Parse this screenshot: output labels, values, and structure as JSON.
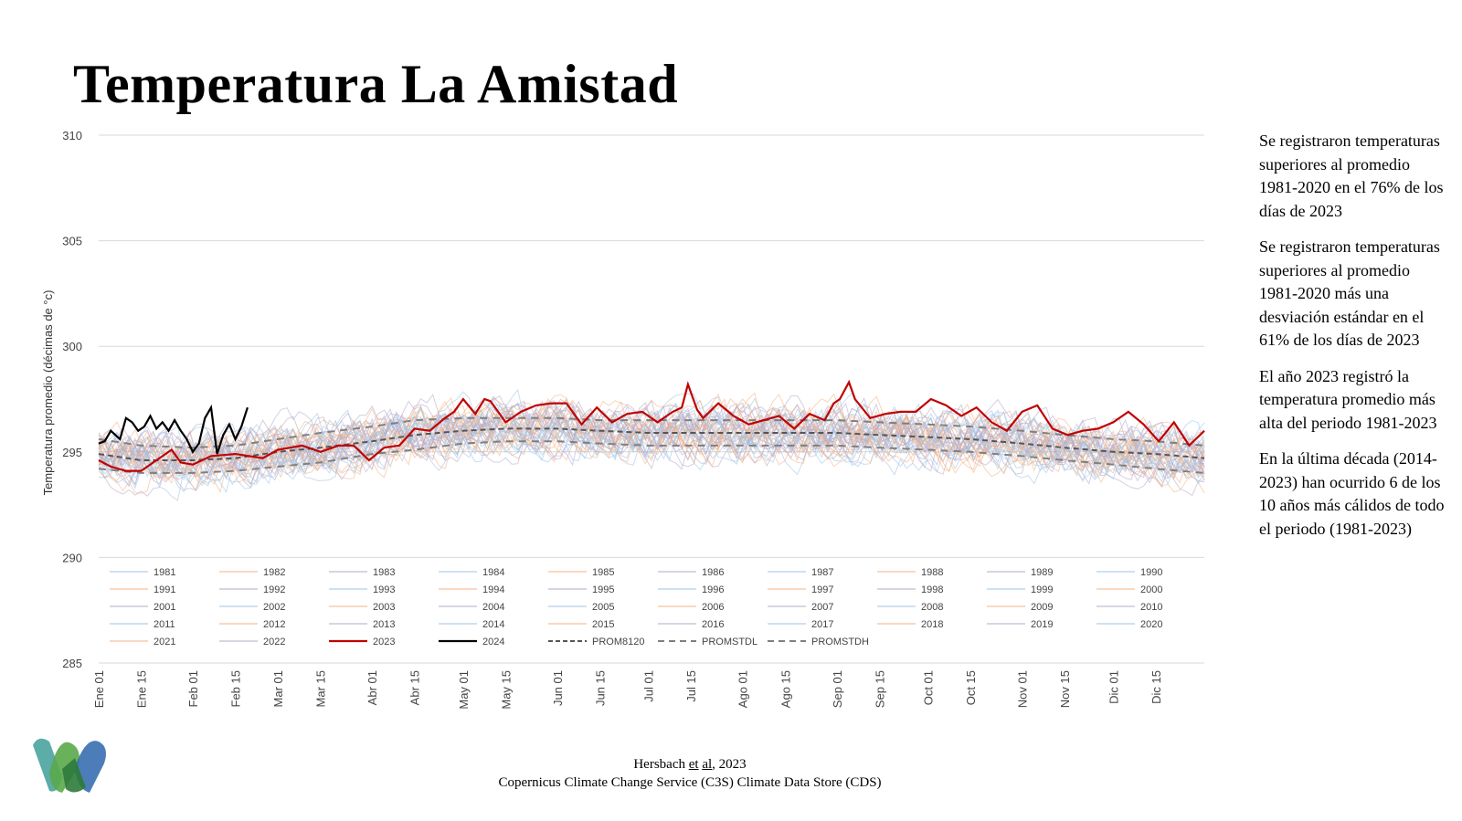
{
  "title": "Temperatura La Amistad",
  "notes": [
    "Se registraron temperaturas superiores al promedio 1981-2020 en el 76% de los días de 2023",
    "Se registraron temperaturas superiores al promedio 1981-2020 más una desviación estándar en el 61% de los días de 2023",
    "El año 2023 registró la temperatura promedio más alta del periodo 1981-2023",
    "En la última década (2014-2023) han ocurrido 6 de los 10 años más cálidos de todo el periodo (1981-2023)"
  ],
  "source": {
    "author": "Hersbach",
    "etal_1": "et",
    "etal_2": "al",
    "year": ", 2023",
    "line2": "Copernicus Climate Change Service (C3S) Climate Data Store (CDS)"
  },
  "logo_icon": "w-logo-icon",
  "chart_data": {
    "type": "line",
    "ylabel": "Temperatura promedio (décimas de °c)",
    "xlabel": "",
    "ylim": [
      285,
      310
    ],
    "yticks": [
      285,
      290,
      295,
      300,
      305,
      310
    ],
    "xlim": [
      1,
      365
    ],
    "x_ticks": [
      {
        "day": 1,
        "label": "Ene 01"
      },
      {
        "day": 15,
        "label": "Ene 15"
      },
      {
        "day": 32,
        "label": "Feb 01"
      },
      {
        "day": 46,
        "label": "Feb 15"
      },
      {
        "day": 60,
        "label": "Mar 01"
      },
      {
        "day": 74,
        "label": "Mar 15"
      },
      {
        "day": 91,
        "label": "Abr 01"
      },
      {
        "day": 105,
        "label": "Abr 15"
      },
      {
        "day": 121,
        "label": "May 01"
      },
      {
        "day": 135,
        "label": "May 15"
      },
      {
        "day": 152,
        "label": "Jun 01"
      },
      {
        "day": 166,
        "label": "Jun 15"
      },
      {
        "day": 182,
        "label": "Jul 01"
      },
      {
        "day": 196,
        "label": "Jul 15"
      },
      {
        "day": 213,
        "label": "Ago 01"
      },
      {
        "day": 227,
        "label": "Ago 15"
      },
      {
        "day": 244,
        "label": "Sep 01"
      },
      {
        "day": 258,
        "label": "Sep 15"
      },
      {
        "day": 274,
        "label": "Oct 01"
      },
      {
        "day": 288,
        "label": "Oct 15"
      },
      {
        "day": 305,
        "label": "Nov 01"
      },
      {
        "day": 319,
        "label": "Nov 15"
      },
      {
        "day": 335,
        "label": "Dic 01"
      },
      {
        "day": 349,
        "label": "Dic 15"
      }
    ],
    "grid": true,
    "legend_placement": "bottom-inside",
    "colors": {
      "y2023": "#c00000",
      "y2024": "#000000",
      "prom": "#555555",
      "std": "#7f7f7f",
      "years_cool": "#9dc3e6",
      "years_warm": "#f4b183",
      "years_mid": "#b4a7c8"
    },
    "legend": [
      "1981",
      "1982",
      "1983",
      "1984",
      "1985",
      "1986",
      "1987",
      "1988",
      "1989",
      "1990",
      "1991",
      "1992",
      "1993",
      "1994",
      "1995",
      "1996",
      "1997",
      "1998",
      "1999",
      "2000",
      "2001",
      "2002",
      "2003",
      "2004",
      "2005",
      "2006",
      "2007",
      "2008",
      "2009",
      "2010",
      "2011",
      "2012",
      "2013",
      "2014",
      "2015",
      "2016",
      "2017",
      "2018",
      "2019",
      "2020",
      "2021",
      "2022",
      "2023",
      "2024",
      "PROM8120",
      "PROMSTDL",
      "PROMSTDH"
    ],
    "series": [
      {
        "name": "PROM8120",
        "style": "dash-dark",
        "x": [
          1,
          15,
          32,
          46,
          60,
          74,
          91,
          105,
          121,
          135,
          152,
          166,
          182,
          196,
          213,
          227,
          244,
          258,
          274,
          288,
          305,
          319,
          335,
          349,
          365
        ],
        "y": [
          294.9,
          294.6,
          294.6,
          294.7,
          295.0,
          295.2,
          295.5,
          295.8,
          296.0,
          296.1,
          296.1,
          296.0,
          295.9,
          295.9,
          295.9,
          295.9,
          295.9,
          295.8,
          295.7,
          295.6,
          295.4,
          295.2,
          295.0,
          294.9,
          294.7
        ]
      },
      {
        "name": "PROMSTDL",
        "style": "dash-light",
        "x": [
          1,
          15,
          32,
          46,
          60,
          74,
          91,
          105,
          121,
          135,
          152,
          166,
          182,
          196,
          213,
          227,
          244,
          258,
          274,
          288,
          305,
          319,
          335,
          349,
          365
        ],
        "y": [
          294.2,
          294.0,
          294.0,
          294.1,
          294.3,
          294.5,
          294.9,
          295.1,
          295.4,
          295.5,
          295.5,
          295.4,
          295.3,
          295.3,
          295.3,
          295.3,
          295.3,
          295.2,
          295.1,
          295.0,
          294.8,
          294.6,
          294.4,
          294.2,
          294.0
        ]
      },
      {
        "name": "PROMSTDH",
        "style": "dash-light",
        "x": [
          1,
          15,
          32,
          46,
          60,
          74,
          91,
          105,
          121,
          135,
          152,
          166,
          182,
          196,
          213,
          227,
          244,
          258,
          274,
          288,
          305,
          319,
          335,
          349,
          365
        ],
        "y": [
          295.6,
          295.3,
          295.2,
          295.3,
          295.6,
          295.9,
          296.2,
          296.5,
          296.6,
          296.6,
          296.6,
          296.5,
          296.5,
          296.5,
          296.5,
          296.5,
          296.5,
          296.4,
          296.3,
          296.2,
          296.0,
          295.8,
          295.6,
          295.5,
          295.3
        ]
      },
      {
        "name": "2023",
        "style": "red",
        "x": [
          1,
          5,
          10,
          15,
          20,
          25,
          28,
          32,
          38,
          46,
          55,
          60,
          68,
          74,
          80,
          85,
          90,
          95,
          100,
          105,
          110,
          115,
          118,
          121,
          125,
          128,
          130,
          135,
          140,
          145,
          150,
          155,
          160,
          165,
          170,
          175,
          180,
          185,
          190,
          193,
          195,
          198,
          200,
          205,
          210,
          215,
          220,
          225,
          230,
          235,
          240,
          243,
          245,
          248,
          250,
          255,
          260,
          265,
          270,
          275,
          280,
          285,
          290,
          295,
          300,
          305,
          310,
          315,
          320,
          325,
          330,
          335,
          340,
          345,
          350,
          355,
          360,
          365
        ],
        "y": [
          294.6,
          294.3,
          294.1,
          294.1,
          294.6,
          295.1,
          294.5,
          294.4,
          294.8,
          294.9,
          294.7,
          295.1,
          295.3,
          295.0,
          295.3,
          295.3,
          294.6,
          295.2,
          295.3,
          296.1,
          296.0,
          296.6,
          296.9,
          297.5,
          296.8,
          297.5,
          297.4,
          296.4,
          296.9,
          297.2,
          297.3,
          297.3,
          296.3,
          297.1,
          296.4,
          296.8,
          296.9,
          296.4,
          296.9,
          297.1,
          298.2,
          297.0,
          296.6,
          297.3,
          296.7,
          296.3,
          296.5,
          296.7,
          296.1,
          296.8,
          296.5,
          297.3,
          297.5,
          298.3,
          297.5,
          296.6,
          296.8,
          296.9,
          296.9,
          297.5,
          297.2,
          296.7,
          297.1,
          296.4,
          296.0,
          296.9,
          297.2,
          296.1,
          295.8,
          296.0,
          296.1,
          296.4,
          296.9,
          296.3,
          295.5,
          296.4,
          295.3,
          296.0
        ]
      },
      {
        "name": "2024",
        "style": "black",
        "x": [
          1,
          3,
          5,
          8,
          10,
          12,
          14,
          16,
          18,
          20,
          22,
          24,
          26,
          28,
          30,
          32,
          34,
          36,
          38,
          40,
          42,
          44,
          46,
          48,
          50
        ],
        "y": [
          295.4,
          295.5,
          296.0,
          295.6,
          296.6,
          296.4,
          296.0,
          296.2,
          296.7,
          296.1,
          296.4,
          296.0,
          296.5,
          296.0,
          295.6,
          295.0,
          295.4,
          296.6,
          297.1,
          294.9,
          295.8,
          296.3,
          295.6,
          296.2,
          297.1
        ]
      }
    ]
  }
}
